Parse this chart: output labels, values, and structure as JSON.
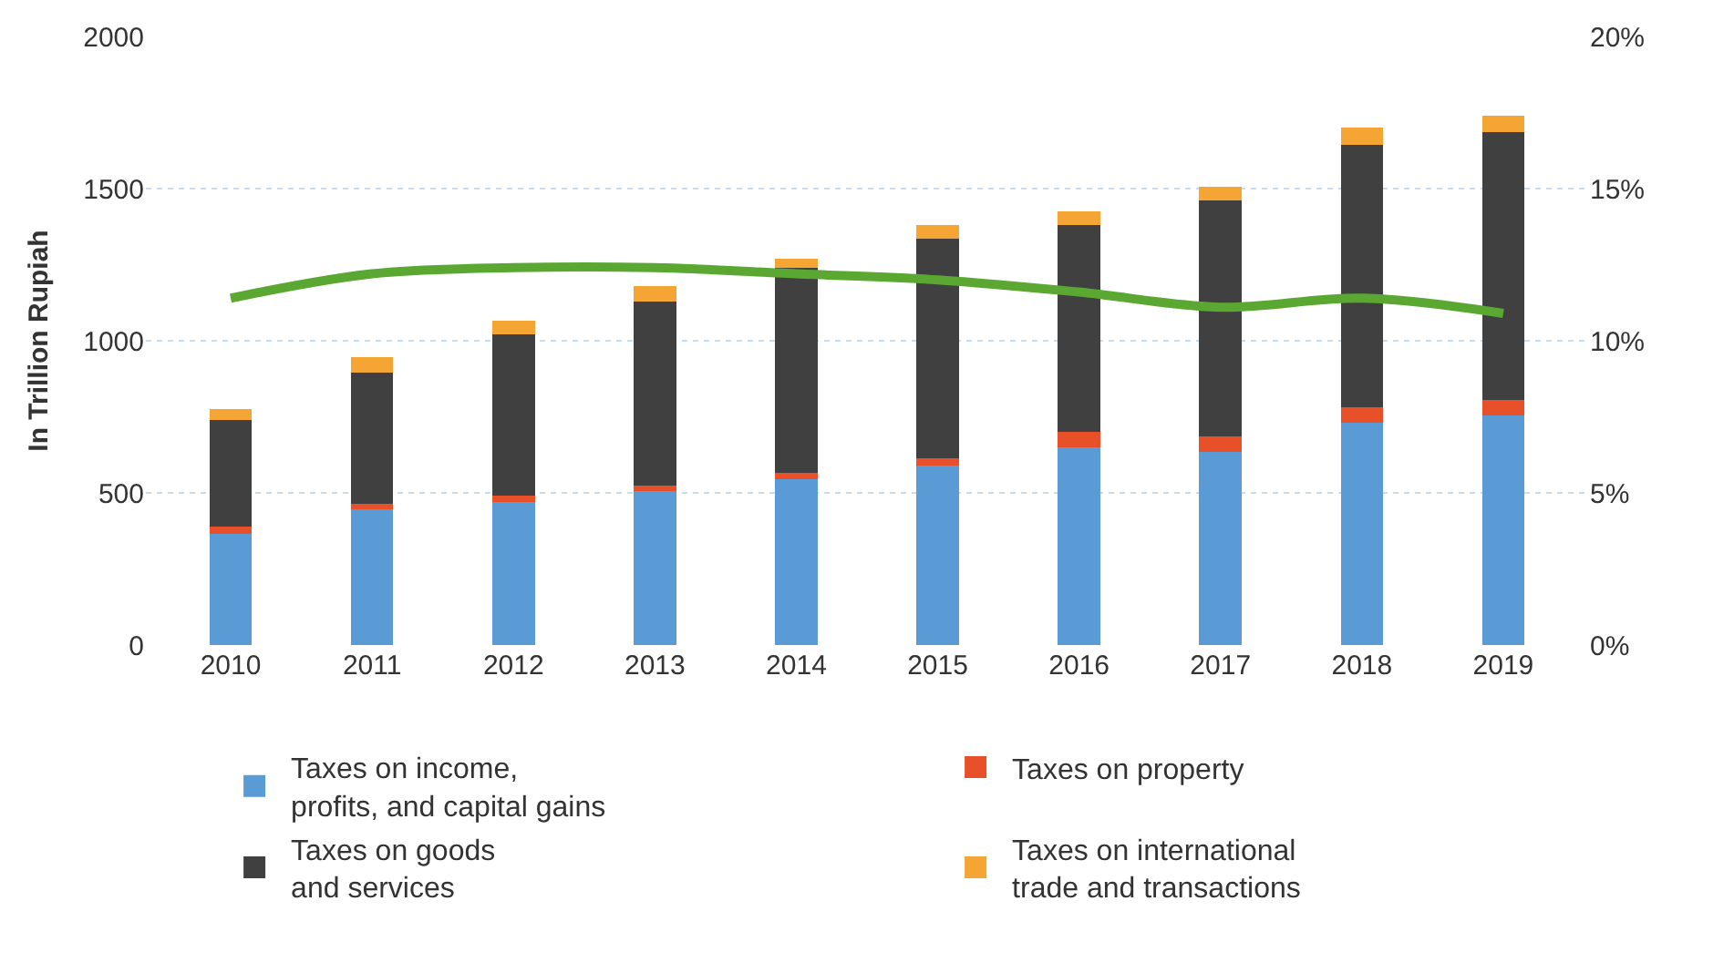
{
  "chart_data": {
    "type": "bar",
    "stacked": true,
    "ylabel": "In Trillion Rupiah",
    "categories": [
      "2010",
      "2011",
      "2012",
      "2013",
      "2014",
      "2015",
      "2016",
      "2017",
      "2018",
      "2019"
    ],
    "series": [
      {
        "name": "Taxes on income,\nprofits, and capital gains",
        "color": "#5b9bd5",
        "values": [
          365,
          445,
          470,
          505,
          545,
          590,
          650,
          635,
          730,
          755
        ]
      },
      {
        "name": "Taxes on property",
        "color": "#e8502a",
        "values": [
          25,
          20,
          20,
          20,
          20,
          25,
          50,
          50,
          50,
          50
        ]
      },
      {
        "name": "Taxes on goods\nand services",
        "color": "#404040",
        "values": [
          350,
          430,
          530,
          605,
          675,
          720,
          680,
          775,
          865,
          880
        ]
      },
      {
        "name": "Taxes on international\ntrade and transactions",
        "color": "#f4a533",
        "values": [
          35,
          50,
          45,
          50,
          30,
          45,
          45,
          45,
          55,
          55
        ]
      },
      {
        "type": "line",
        "axis": "y2",
        "color": "#5aa832",
        "values": [
          11.4,
          12.2,
          12.4,
          12.4,
          12.2,
          12.0,
          11.6,
          11.1,
          11.4,
          10.9
        ]
      }
    ],
    "ylim": [
      0,
      2000
    ],
    "yticks": [
      0,
      500,
      1000,
      1500,
      2000
    ],
    "y2lim": [
      0,
      20
    ],
    "y2ticks": [
      {
        "value": 0,
        "label": "0%"
      },
      {
        "value": 5,
        "label": "5%"
      },
      {
        "value": 10,
        "label": "10%"
      },
      {
        "value": 15,
        "label": "15%"
      },
      {
        "value": 20,
        "label": "20%"
      }
    ],
    "grid": "y",
    "legend": "bottom"
  }
}
